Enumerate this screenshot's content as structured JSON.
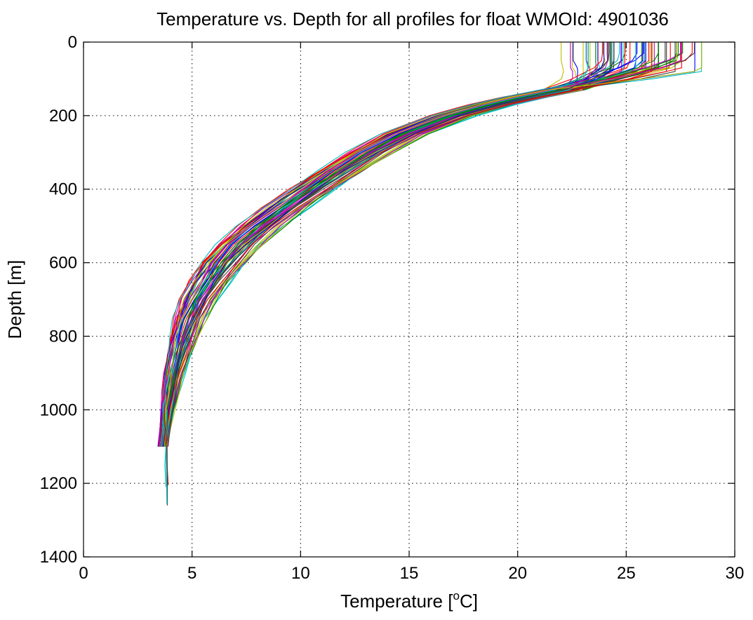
{
  "chart_data": {
    "type": "line",
    "title": "Temperature vs. Depth for all profiles for float WMOId: 4901036",
    "xlabel_prefix": "Temperature [",
    "xlabel_super": "o",
    "xlabel_suffix": "C]",
    "ylabel": "Depth [m]",
    "xlim": [
      0,
      30
    ],
    "ylim": [
      0,
      1400
    ],
    "y_reversed": true,
    "xticks": [
      0,
      5,
      10,
      15,
      20,
      25,
      30
    ],
    "yticks": [
      0,
      200,
      400,
      600,
      800,
      1000,
      1200,
      1400
    ],
    "grid": true,
    "grid_style": "dotted",
    "legend": "none",
    "series_colors": [
      "#0000ff",
      "#008000",
      "#ff0000",
      "#00bfbf",
      "#bf00bf",
      "#bfbf00",
      "#404040"
    ],
    "series_count": 70,
    "depth": [
      0,
      30,
      50,
      70,
      80,
      100,
      130,
      150,
      170,
      200,
      250,
      300,
      350,
      400,
      450,
      500,
      550,
      600,
      650,
      700,
      750,
      800,
      850,
      900,
      950,
      1000,
      1050,
      1100
    ],
    "mean_temperature": [
      24.5,
      24.5,
      24.3,
      23.5,
      23.0,
      22.6,
      22.0,
      20.3,
      18.8,
      17.0,
      14.8,
      13.2,
      11.8,
      10.5,
      9.3,
      8.2,
      7.2,
      6.4,
      5.8,
      5.3,
      4.9,
      4.6,
      4.35,
      4.15,
      4.0,
      3.85,
      3.75,
      3.65
    ],
    "surface_temperature_range": [
      22.0,
      28.5
    ],
    "deep_profiles": [
      {
        "color": "#00bfbf",
        "temperature": [
          3.85,
          3.8,
          3.75,
          3.8,
          3.8
        ],
        "depth": [
          1000,
          1100,
          1150,
          1210,
          1210
        ]
      },
      {
        "color": "#ff0000",
        "temperature": [
          3.8,
          3.85,
          3.88,
          3.9
        ],
        "depth": [
          1050,
          1150,
          1180,
          1205
        ]
      },
      {
        "color": "#404040",
        "temperature": [
          3.85,
          3.86,
          3.86
        ],
        "depth": [
          1100,
          1200,
          1260
        ]
      },
      {
        "color": "#00bfbf",
        "temperature": [
          3.8,
          3.83,
          3.84
        ],
        "depth": [
          1100,
          1200,
          1255
        ]
      }
    ]
  }
}
